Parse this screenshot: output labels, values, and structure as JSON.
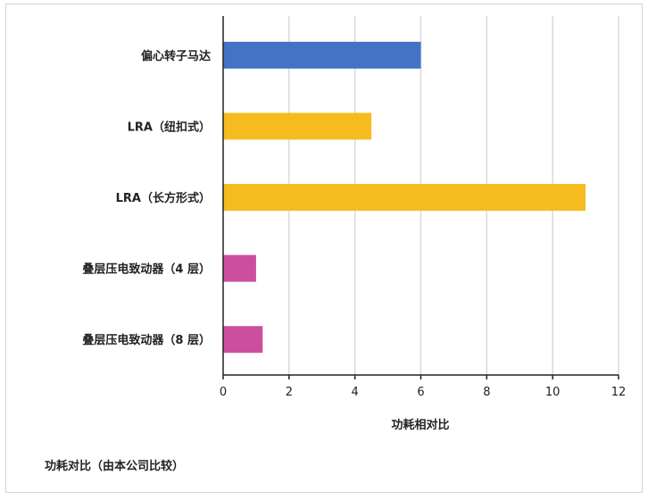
{
  "caption": "功耗对比（由本公司比较）",
  "chart_data": {
    "type": "bar",
    "orientation": "horizontal",
    "categories": [
      "偏心转子马达",
      "LRA（纽扣式）",
      "LRA（长方形式）",
      "叠层压电致动器（4 层）",
      "叠层压电致动器（8 层）"
    ],
    "values": [
      6.0,
      4.5,
      11.0,
      1.0,
      1.2
    ],
    "bar_colors": [
      "#4472c4",
      "#f6bb1f",
      "#f6bb1f",
      "#cc4f9e",
      "#cc4f9e"
    ],
    "xlabel": "功耗相对比",
    "ylabel": "",
    "xlim": [
      0,
      12
    ],
    "xticks": [
      0,
      2,
      4,
      6,
      8,
      10,
      12
    ],
    "grid": true,
    "legend": "none"
  }
}
